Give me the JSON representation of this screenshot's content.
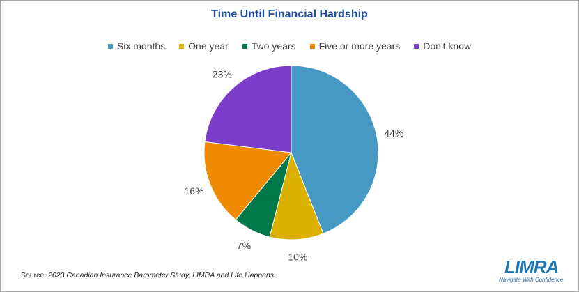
{
  "chart_data": {
    "type": "pie",
    "title": "Time Until Financial Hardship",
    "categories": [
      "Six months",
      "One year",
      "Two years",
      "Five or more years",
      "Don't know"
    ],
    "values": [
      44,
      10,
      7,
      16,
      23
    ],
    "value_labels": [
      "44%",
      "10%",
      "7%",
      "16%",
      "23%"
    ],
    "colors": [
      "#4599c3",
      "#dbb100",
      "#00794a",
      "#ee8b00",
      "#7d3dcb"
    ],
    "legend_position": "top"
  },
  "source": {
    "prefix": "Source: ",
    "text": "2023 Canadian Insurance Barometer Study, LIMRA and Life Happens."
  },
  "logo": {
    "wordmark": "LIMRA",
    "tagline": "Navigate With Confidence"
  }
}
